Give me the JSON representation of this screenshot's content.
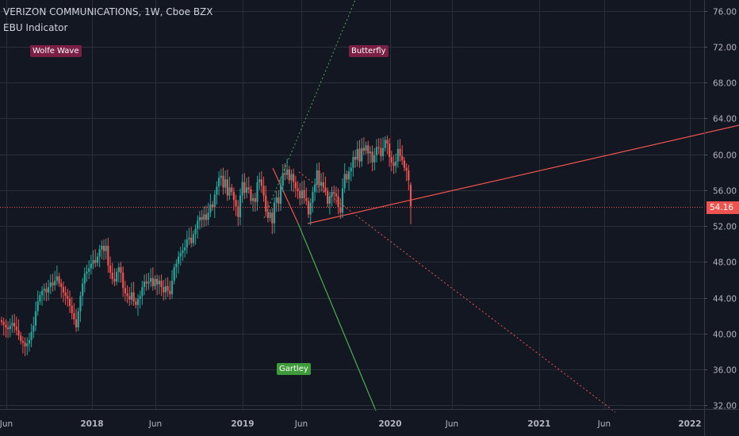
{
  "header": {
    "title": "VERIZON COMMUNICATIONS, 1W, Cboe BZX",
    "indicator": "EBU Indicator"
  },
  "patterns": {
    "wolfe": "Wolfe Wave",
    "butterfly": "Butterfly",
    "gartley": "Gartley"
  },
  "last_price": "54.16",
  "colors": {
    "background": "#131722",
    "up": "#26a69a",
    "down": "#ef5350",
    "grid": "#2a2e39",
    "axis_text": "#b2b5be",
    "trend_red": "#ef5350",
    "trend_green": "#4caf50",
    "badge_bear": "#7b1f45",
    "badge_bull": "#3e9b3a"
  },
  "chart_data": {
    "type": "candlestick",
    "title": "VERIZON COMMUNICATIONS, 1W, Cboe BZX",
    "ylim": [
      31.6,
      77.2
    ],
    "y_ticks": [
      "32.00",
      "36.00",
      "40.00",
      "44.00",
      "48.00",
      "52.00",
      "56.00",
      "60.00",
      "64.00",
      "68.00",
      "72.00",
      "76.00"
    ],
    "x_ticks": [
      "Jun",
      "2018",
      "Jun",
      "2019",
      "Jun",
      "2020",
      "Jun",
      "2021",
      "Jun",
      "2022"
    ],
    "x_tick_bold": [
      false,
      true,
      false,
      true,
      false,
      true,
      false,
      true,
      false,
      true
    ],
    "grid": true,
    "weekly_closes": [
      41.3,
      41.0,
      40.7,
      40.5,
      40.9,
      41.2,
      40.8,
      40.4,
      39.8,
      39.2,
      39.0,
      38.6,
      38.9,
      39.3,
      40.2,
      40.9,
      42.5,
      43.6,
      44.3,
      44.8,
      45.0,
      44.6,
      45.2,
      45.7,
      45.4,
      45.9,
      46.4,
      45.6,
      45.2,
      44.6,
      44.2,
      43.9,
      43.1,
      42.3,
      41.6,
      40.7,
      42.5,
      44.2,
      45.6,
      46.7,
      46.9,
      47.3,
      47.8,
      48.2,
      47.9,
      48.6,
      49.4,
      49.8,
      49.2,
      49.8,
      47.6,
      46.8,
      46.1,
      45.8,
      46.9,
      47.4,
      46.8,
      45.1,
      44.5,
      44.2,
      43.8,
      44.6,
      43.6,
      43.2,
      43.9,
      44.2,
      45.2,
      45.8,
      45.6,
      45.8,
      46.2,
      45.3,
      46.1,
      45.5,
      45.9,
      45.2,
      44.6,
      45.3,
      44.8,
      44.4,
      45.9,
      47.4,
      47.8,
      48.6,
      49.0,
      49.3,
      49.6,
      50.5,
      50.7,
      50.1,
      51.1,
      51.7,
      52.6,
      53.0,
      52.7,
      53.3,
      52.7,
      53.5,
      54.4,
      54.1,
      55.5,
      56.4,
      57.4,
      57.6,
      56.3,
      57.2,
      55.4,
      56.3,
      55.8,
      54.9,
      54.2,
      53.0,
      55.4,
      56.9,
      55.7,
      56.3,
      56.1,
      54.8,
      55.1,
      54.7,
      56.9,
      57.2,
      56.5,
      55.4,
      53.6,
      52.9,
      53.5,
      52.3,
      54.6,
      55.2,
      54.5,
      56.5,
      57.9,
      57.7,
      58.3,
      57.1,
      57.8,
      56.9,
      56.2,
      55.9,
      55.1,
      56.0,
      55.1,
      54.8,
      53.3,
      54.6,
      55.8,
      56.6,
      58.2,
      56.5,
      56.9,
      56.3,
      55.9,
      54.5,
      55.3,
      55.8,
      55.6,
      55.3,
      54.1,
      53.5,
      56.2,
      57.8,
      57.2,
      58.1,
      58.5,
      59.7,
      59.4,
      60.6,
      59.2,
      60.7,
      60.4,
      61.0,
      60.1,
      60.3,
      59.1,
      59.9,
      60.8,
      60.7,
      59.8,
      60.7,
      61.6,
      61.2,
      59.7,
      59.1,
      58.7,
      59.2,
      60.6,
      59.8,
      59.3,
      58.5,
      58.2,
      57.1,
      54.2
    ],
    "annotations": [
      "Wolfe Wave",
      "Butterfly",
      "Gartley"
    ],
    "last_price": 54.16
  }
}
